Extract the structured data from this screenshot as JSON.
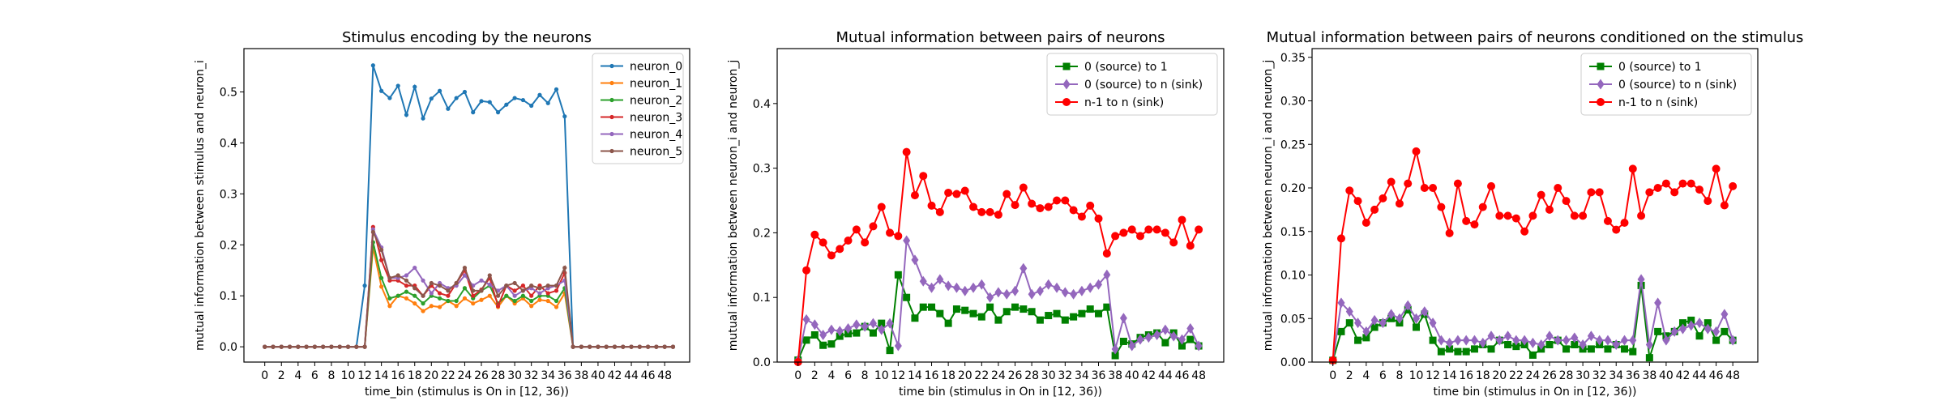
{
  "chart_data": [
    {
      "type": "line",
      "title": "Stimulus encoding by the neurons",
      "xlabel": "time_bin (stimulus is On in [12, 36))",
      "ylabel": "mutual information between stimulus and neuron_i",
      "xlim": [
        -2.5,
        51
      ],
      "ylim": [
        -0.03,
        0.585
      ],
      "xticks": [
        0,
        2,
        4,
        6,
        8,
        10,
        12,
        14,
        16,
        18,
        20,
        22,
        24,
        26,
        28,
        30,
        32,
        34,
        36,
        38,
        40,
        42,
        44,
        46,
        48
      ],
      "yticks": [
        0.0,
        0.1,
        0.2,
        0.3,
        0.4,
        0.5
      ],
      "ytick_decimals": 1,
      "grid": false,
      "legend": "top-right",
      "x": [
        0,
        1,
        2,
        3,
        4,
        5,
        6,
        7,
        8,
        9,
        10,
        11,
        12,
        13,
        14,
        15,
        16,
        17,
        18,
        19,
        20,
        21,
        22,
        23,
        24,
        25,
        26,
        27,
        28,
        29,
        30,
        31,
        32,
        33,
        34,
        35,
        36,
        37,
        38,
        39,
        40,
        41,
        42,
        43,
        44,
        45,
        46,
        47,
        48,
        49
      ],
      "series": [
        {
          "name": "neuron_0",
          "color": "#1f77b4",
          "marker": "dot",
          "values": [
            0,
            0,
            0,
            0,
            0,
            0,
            0,
            0,
            0,
            0,
            0,
            0,
            0.12,
            0.552,
            0.502,
            0.488,
            0.512,
            0.455,
            0.51,
            0.448,
            0.487,
            0.502,
            0.467,
            0.488,
            0.5,
            0.46,
            0.482,
            0.48,
            0.46,
            0.475,
            0.488,
            0.484,
            0.473,
            0.494,
            0.478,
            0.505,
            0.452,
            0,
            0,
            0,
            0,
            0,
            0,
            0,
            0,
            0,
            0,
            0,
            0,
            0
          ]
        },
        {
          "name": "neuron_1",
          "color": "#ff7f0e",
          "marker": "dot",
          "values": [
            0,
            0,
            0,
            0,
            0,
            0,
            0,
            0,
            0,
            0,
            0,
            0,
            0,
            0.195,
            0.118,
            0.08,
            0.1,
            0.095,
            0.085,
            0.07,
            0.08,
            0.078,
            0.09,
            0.08,
            0.095,
            0.085,
            0.092,
            0.1,
            0.078,
            0.1,
            0.085,
            0.095,
            0.08,
            0.092,
            0.09,
            0.078,
            0.105,
            0,
            0,
            0,
            0,
            0,
            0,
            0,
            0,
            0,
            0,
            0,
            0,
            0
          ]
        },
        {
          "name": "neuron_2",
          "color": "#2ca02c",
          "marker": "dot",
          "values": [
            0,
            0,
            0,
            0,
            0,
            0,
            0,
            0,
            0,
            0,
            0,
            0,
            0,
            0.205,
            0.135,
            0.095,
            0.1,
            0.108,
            0.1,
            0.085,
            0.1,
            0.095,
            0.09,
            0.09,
            0.115,
            0.095,
            0.11,
            0.12,
            0.085,
            0.1,
            0.09,
            0.1,
            0.09,
            0.1,
            0.1,
            0.09,
            0.115,
            0,
            0,
            0,
            0,
            0,
            0,
            0,
            0,
            0,
            0,
            0,
            0,
            0
          ]
        },
        {
          "name": "neuron_3",
          "color": "#d62728",
          "marker": "dot",
          "values": [
            0,
            0,
            0,
            0,
            0,
            0,
            0,
            0,
            0,
            0,
            0,
            0,
            0,
            0.235,
            0.17,
            0.13,
            0.13,
            0.12,
            0.12,
            0.1,
            0.12,
            0.105,
            0.1,
            0.125,
            0.15,
            0.1,
            0.112,
            0.135,
            0.08,
            0.12,
            0.11,
            0.12,
            0.1,
            0.12,
            0.105,
            0.11,
            0.145,
            0,
            0,
            0,
            0,
            0,
            0,
            0,
            0,
            0,
            0,
            0,
            0,
            0
          ]
        },
        {
          "name": "neuron_4",
          "color": "#9467bd",
          "marker": "dot",
          "values": [
            0,
            0,
            0,
            0,
            0,
            0,
            0,
            0,
            0,
            0,
            0,
            0,
            0,
            0.23,
            0.195,
            0.135,
            0.135,
            0.14,
            0.155,
            0.13,
            0.105,
            0.125,
            0.115,
            0.12,
            0.14,
            0.12,
            0.13,
            0.122,
            0.11,
            0.12,
            0.1,
            0.11,
            0.115,
            0.105,
            0.115,
            0.12,
            0.13,
            0,
            0,
            0,
            0,
            0,
            0,
            0,
            0,
            0,
            0,
            0,
            0,
            0
          ]
        },
        {
          "name": "neuron_5",
          "color": "#8c564b",
          "marker": "dot",
          "values": [
            0,
            0,
            0,
            0,
            0,
            0,
            0,
            0,
            0,
            0,
            0,
            0,
            0,
            0.225,
            0.19,
            0.135,
            0.14,
            0.13,
            0.115,
            0.1,
            0.125,
            0.12,
            0.11,
            0.125,
            0.155,
            0.11,
            0.11,
            0.14,
            0.1,
            0.12,
            0.125,
            0.11,
            0.12,
            0.115,
            0.12,
            0.12,
            0.155,
            0,
            0,
            0,
            0,
            0,
            0,
            0,
            0,
            0,
            0,
            0,
            0,
            0
          ]
        }
      ]
    },
    {
      "type": "line",
      "title": "Mutual information between pairs of neurons",
      "xlabel": "time bin (stimulus in On in [12, 36))",
      "ylabel": "mutual information between neuron_i and neuron_j",
      "xlim": [
        -2.5,
        51
      ],
      "ylim": [
        0.0,
        0.485
      ],
      "xticks": [
        0,
        2,
        4,
        6,
        8,
        10,
        12,
        14,
        16,
        18,
        20,
        22,
        24,
        26,
        28,
        30,
        32,
        34,
        36,
        38,
        40,
        42,
        44,
        46,
        48
      ],
      "yticks": [
        0.0,
        0.1,
        0.2,
        0.3,
        0.4
      ],
      "ytick_decimals": 1,
      "grid": false,
      "legend": "top-right",
      "x": [
        0,
        1,
        2,
        3,
        4,
        5,
        6,
        7,
        8,
        9,
        10,
        11,
        12,
        13,
        14,
        15,
        16,
        17,
        18,
        19,
        20,
        21,
        22,
        23,
        24,
        25,
        26,
        27,
        28,
        29,
        30,
        31,
        32,
        33,
        34,
        35,
        36,
        37,
        38,
        39,
        40,
        41,
        42,
        43,
        44,
        45,
        46,
        47,
        48
      ],
      "series": [
        {
          "name": "0 (source) to 1",
          "color": "#008000",
          "marker": "square",
          "values": [
            0.003,
            0.034,
            0.042,
            0.026,
            0.028,
            0.04,
            0.044,
            0.045,
            0.055,
            0.045,
            0.06,
            0.018,
            0.135,
            0.1,
            0.068,
            0.085,
            0.085,
            0.075,
            0.06,
            0.082,
            0.08,
            0.075,
            0.07,
            0.085,
            0.065,
            0.078,
            0.085,
            0.082,
            0.078,
            0.065,
            0.072,
            0.075,
            0.065,
            0.07,
            0.075,
            0.082,
            0.075,
            0.085,
            0.01,
            0.032,
            0.028,
            0.038,
            0.042,
            0.045,
            0.03,
            0.045,
            0.025,
            0.035,
            0.025
          ]
        },
        {
          "name": "0 (source) to n (sink)",
          "color": "#9467bd",
          "marker": "diamond",
          "values": [
            0.003,
            0.066,
            0.058,
            0.042,
            0.05,
            0.048,
            0.052,
            0.058,
            0.055,
            0.06,
            0.05,
            0.06,
            0.025,
            0.188,
            0.158,
            0.125,
            0.115,
            0.128,
            0.118,
            0.115,
            0.11,
            0.115,
            0.12,
            0.1,
            0.108,
            0.105,
            0.11,
            0.145,
            0.105,
            0.11,
            0.12,
            0.115,
            0.108,
            0.105,
            0.11,
            0.115,
            0.12,
            0.135,
            0.02,
            0.068,
            0.025,
            0.035,
            0.038,
            0.042,
            0.05,
            0.04,
            0.035,
            0.052,
            0.025
          ]
        },
        {
          "name": "n-1 to n (sink)",
          "color": "#ff0000",
          "marker": "circle",
          "values": [
            0.0,
            0.142,
            0.197,
            0.185,
            0.165,
            0.175,
            0.188,
            0.205,
            0.185,
            0.21,
            0.24,
            0.2,
            0.195,
            0.325,
            0.258,
            0.288,
            0.242,
            0.232,
            0.262,
            0.26,
            0.265,
            0.24,
            0.232,
            0.232,
            0.228,
            0.26,
            0.243,
            0.27,
            0.245,
            0.238,
            0.24,
            0.25,
            0.25,
            0.235,
            0.225,
            0.242,
            0.222,
            0.168,
            0.195,
            0.2,
            0.205,
            0.195,
            0.205,
            0.205,
            0.2,
            0.185,
            0.22,
            0.18,
            0.205
          ]
        }
      ]
    },
    {
      "type": "line",
      "title": "Mutual information between pairs of neurons conditioned on the stimulus",
      "xlabel": "time bin (stimulus in On in [12, 36))",
      "ylabel": "mutual information between neuron_i and neuron_j",
      "xlim": [
        -2.5,
        51
      ],
      "ylim": [
        0.0,
        0.36
      ],
      "xticks": [
        0,
        2,
        4,
        6,
        8,
        10,
        12,
        14,
        16,
        18,
        20,
        22,
        24,
        26,
        28,
        30,
        32,
        34,
        36,
        38,
        40,
        42,
        44,
        46,
        48
      ],
      "yticks": [
        0.0,
        0.05,
        0.1,
        0.15,
        0.2,
        0.25,
        0.3,
        0.35
      ],
      "ytick_decimals": 2,
      "grid": false,
      "legend": "top-right",
      "x": [
        0,
        1,
        2,
        3,
        4,
        5,
        6,
        7,
        8,
        9,
        10,
        11,
        12,
        13,
        14,
        15,
        16,
        17,
        18,
        19,
        20,
        21,
        22,
        23,
        24,
        25,
        26,
        27,
        28,
        29,
        30,
        31,
        32,
        33,
        34,
        35,
        36,
        37,
        38,
        39,
        40,
        41,
        42,
        43,
        44,
        45,
        46,
        47,
        48
      ],
      "series": [
        {
          "name": "0 (source) to 1",
          "color": "#008000",
          "marker": "square",
          "values": [
            0.002,
            0.035,
            0.045,
            0.025,
            0.028,
            0.04,
            0.045,
            0.05,
            0.045,
            0.06,
            0.04,
            0.055,
            0.025,
            0.012,
            0.015,
            0.012,
            0.012,
            0.015,
            0.02,
            0.015,
            0.025,
            0.02,
            0.018,
            0.02,
            0.008,
            0.015,
            0.02,
            0.025,
            0.015,
            0.02,
            0.015,
            0.015,
            0.02,
            0.015,
            0.02,
            0.015,
            0.012,
            0.088,
            0.005,
            0.035,
            0.03,
            0.035,
            0.045,
            0.048,
            0.03,
            0.045,
            0.025,
            0.035,
            0.025
          ]
        },
        {
          "name": "0 (source) to n (sink)",
          "color": "#9467bd",
          "marker": "diamond",
          "values": [
            0.002,
            0.068,
            0.058,
            0.045,
            0.035,
            0.048,
            0.045,
            0.055,
            0.05,
            0.065,
            0.05,
            0.058,
            0.045,
            0.025,
            0.022,
            0.025,
            0.025,
            0.025,
            0.022,
            0.03,
            0.025,
            0.03,
            0.025,
            0.025,
            0.022,
            0.02,
            0.03,
            0.025,
            0.025,
            0.028,
            0.02,
            0.03,
            0.025,
            0.025,
            0.02,
            0.025,
            0.025,
            0.095,
            0.02,
            0.068,
            0.025,
            0.035,
            0.038,
            0.042,
            0.045,
            0.038,
            0.035,
            0.055,
            0.025
          ]
        },
        {
          "name": "n-1 to n (sink)",
          "color": "#ff0000",
          "marker": "circle",
          "values": [
            0.002,
            0.142,
            0.197,
            0.185,
            0.16,
            0.175,
            0.188,
            0.207,
            0.182,
            0.205,
            0.242,
            0.2,
            0.2,
            0.178,
            0.148,
            0.205,
            0.162,
            0.158,
            0.178,
            0.202,
            0.168,
            0.168,
            0.165,
            0.15,
            0.168,
            0.192,
            0.175,
            0.2,
            0.185,
            0.168,
            0.168,
            0.195,
            0.195,
            0.162,
            0.152,
            0.16,
            0.222,
            0.168,
            0.195,
            0.2,
            0.205,
            0.195,
            0.205,
            0.205,
            0.198,
            0.185,
            0.222,
            0.18,
            0.202
          ]
        }
      ]
    }
  ]
}
